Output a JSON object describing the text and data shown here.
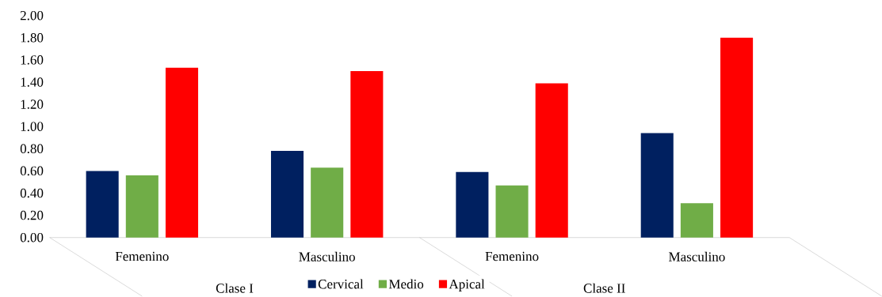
{
  "chart_data": {
    "type": "bar",
    "categories": [
      "Femenino",
      "Masculino",
      "Femenino",
      "Masculino"
    ],
    "series": [
      {
        "name": "Cervical",
        "color": "#002060",
        "values": [
          0.6,
          0.78,
          0.59,
          0.94
        ]
      },
      {
        "name": "Medio",
        "color": "#70ad47",
        "values": [
          0.56,
          0.63,
          0.47,
          0.31
        ]
      },
      {
        "name": "Apical",
        "color": "#ff0000",
        "values": [
          1.53,
          1.5,
          1.39,
          1.8
        ]
      }
    ],
    "ylim": [
      0,
      2
    ],
    "yticks": [
      {
        "value": 0,
        "label": "0.00"
      },
      {
        "value": 0.2,
        "label": "0.20"
      },
      {
        "value": 0.4,
        "label": "0.40"
      },
      {
        "value": 0.6,
        "label": "0.60"
      },
      {
        "value": 0.8,
        "label": "0.80"
      },
      {
        "value": 1,
        "label": "1.00"
      },
      {
        "value": 1.2,
        "label": "1.20"
      },
      {
        "value": 1.4,
        "label": "1.40"
      },
      {
        "value": 1.6,
        "label": "1.60"
      },
      {
        "value": 1.8,
        "label": "1.80"
      },
      {
        "value": 2,
        "label": "2.00"
      }
    ],
    "annotations": [
      "Clase I",
      "Clase II"
    ],
    "legend": "bottom",
    "grid": false
  }
}
